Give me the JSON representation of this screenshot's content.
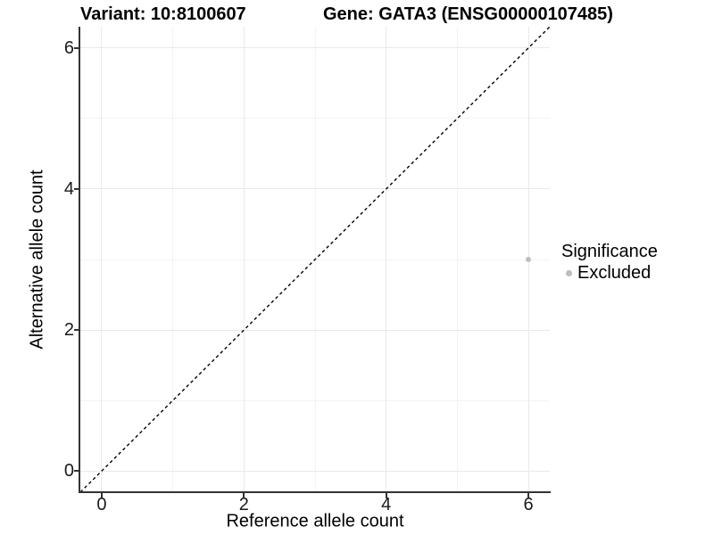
{
  "titles": {
    "variant": "Variant: 10:8100607",
    "gene": "Gene: GATA3 (ENSG00000107485)"
  },
  "chart_data": {
    "type": "scatter",
    "title_left": "Variant: 10:8100607",
    "title_right": "Gene: GATA3 (ENSG00000107485)",
    "xlabel": "Reference allele count",
    "ylabel": "Alternative allele count",
    "xlim": [
      -0.3,
      6.3
    ],
    "ylim": [
      -0.3,
      6.3
    ],
    "x_ticks": [
      0,
      2,
      4,
      6
    ],
    "y_ticks": [
      0,
      2,
      4,
      6
    ],
    "x_minor_ticks": [
      1,
      3,
      5
    ],
    "y_minor_ticks": [
      1,
      3,
      5
    ],
    "grid": "major+minor",
    "points": [
      {
        "x": 6,
        "y": 3,
        "series": "Excluded"
      }
    ],
    "identity_line": {
      "type": "dashed",
      "equation": "y = x",
      "from": [
        -0.3,
        -0.3
      ],
      "to": [
        6.3,
        6.3
      ],
      "color": "#000000"
    },
    "legend": {
      "title": "Significance",
      "position": "right",
      "entries": [
        {
          "label": "Excluded",
          "color": "#bebebe"
        }
      ]
    },
    "colors": {
      "point_excluded": "#bebebe",
      "grid_major": "#e9e9e9",
      "grid_minor": "#f3f3f3",
      "axis_line": "#333333",
      "text": "#000000"
    }
  }
}
